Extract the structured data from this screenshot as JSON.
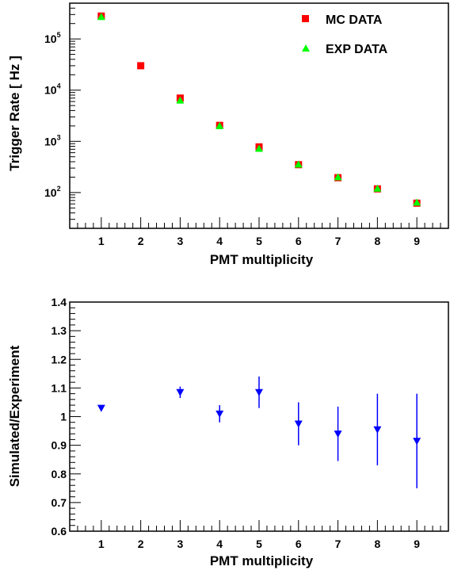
{
  "chart_data": [
    {
      "type": "scatter",
      "xlabel": "PMT multiplicity",
      "ylabel": "Trigger Rate [ Hz ]",
      "xlim": [
        0.2,
        9.8
      ],
      "ylim": [
        20,
        500000
      ],
      "yscale": "log",
      "x_ticks": [
        "1",
        "2",
        "3",
        "4",
        "5",
        "6",
        "7",
        "8",
        "9"
      ],
      "y_ticks": [
        {
          "value": 100,
          "base": "10",
          "exp": "2"
        },
        {
          "value": 1000,
          "base": "10",
          "exp": "3"
        },
        {
          "value": 10000,
          "base": "10",
          "exp": "4"
        },
        {
          "value": 100000,
          "base": "10",
          "exp": "5"
        }
      ],
      "legend": "top-right",
      "series": [
        {
          "name": "MC DATA",
          "marker": "square",
          "color": "#ff0000",
          "x": [
            1,
            2,
            3,
            4,
            5,
            6,
            7,
            8,
            9
          ],
          "y": [
            280000,
            30000,
            7000,
            2050,
            780,
            350,
            195,
            118,
            62
          ]
        },
        {
          "name": "EXP DATA",
          "marker": "triangle-up",
          "color": "#00ff00",
          "x": [
            1,
            3,
            4,
            5,
            6,
            7,
            8,
            9
          ],
          "y": [
            270000,
            6300,
            2000,
            720,
            355,
            200,
            120,
            64
          ]
        }
      ]
    },
    {
      "type": "scatter",
      "xlabel": "PMT multiplicity",
      "ylabel": "Simulated/Experiment",
      "xlim": [
        0.2,
        9.8
      ],
      "ylim": [
        0.6,
        1.4
      ],
      "x_ticks": [
        "1",
        "2",
        "3",
        "4",
        "5",
        "6",
        "7",
        "8",
        "9"
      ],
      "y_ticks": [
        "0.6",
        "0.7",
        "0.8",
        "0.9",
        "1",
        "1.1",
        "1.2",
        "1.3",
        "1.4"
      ],
      "series": [
        {
          "marker": "triangle-down",
          "color": "#0000ff",
          "x": [
            1,
            3,
            4,
            5,
            6,
            7,
            8,
            9
          ],
          "y": [
            1.03,
            1.085,
            1.01,
            1.085,
            0.975,
            0.94,
            0.955,
            0.915
          ],
          "yerr": [
            0.005,
            0.02,
            0.03,
            0.055,
            0.075,
            0.095,
            0.125,
            0.165
          ]
        }
      ]
    }
  ]
}
